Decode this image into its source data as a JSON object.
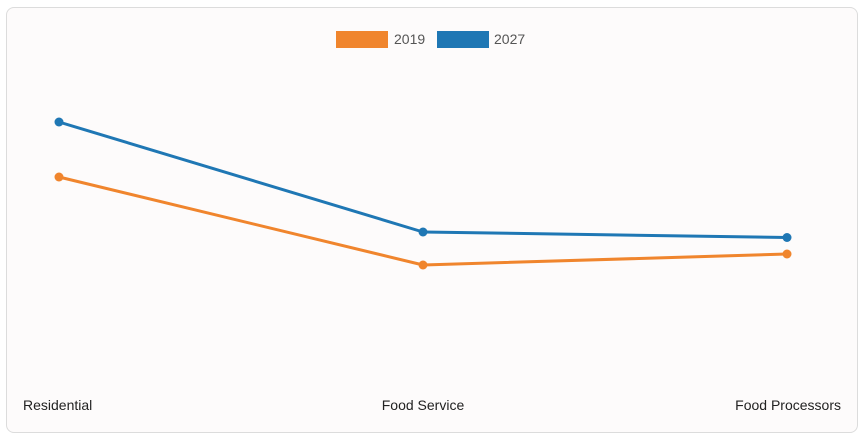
{
  "chart_data": {
    "type": "line",
    "title": "",
    "xlabel": "",
    "ylabel": "",
    "categories": [
      "Residential",
      "Food Service",
      "Food Processors"
    ],
    "series": [
      {
        "name": "2019",
        "values": [
          52,
          20,
          24
        ],
        "color": "#f0852d"
      },
      {
        "name": "2027",
        "values": [
          72,
          32,
          30
        ],
        "color": "#1f77b4"
      }
    ],
    "ylim": [
      0,
      100
    ],
    "grid": false,
    "legend_position": "top-center"
  }
}
